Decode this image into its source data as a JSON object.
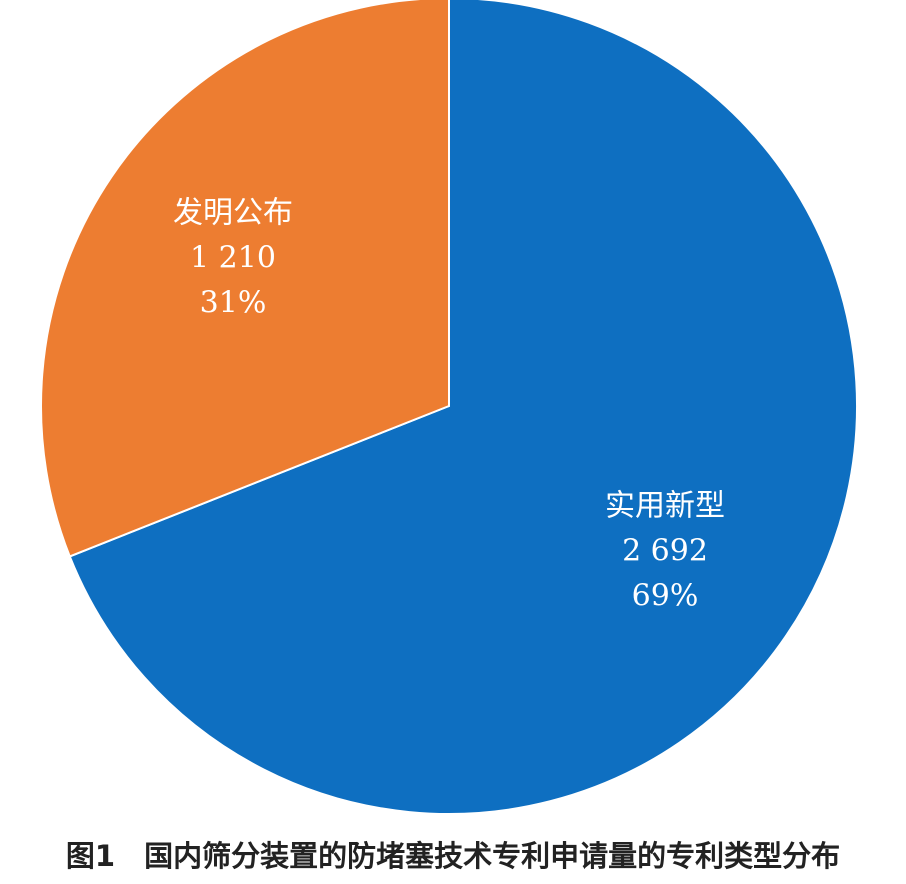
{
  "chart_data": {
    "type": "pie",
    "title": "图1　国内筛分装置的防堵塞技术专利申请量的专利类型分布",
    "categories": [
      "实用新型",
      "发明公布"
    ],
    "values": [
      2692,
      1210
    ],
    "value_labels": [
      "2 692",
      "1 210"
    ],
    "shares": [
      69,
      31
    ],
    "share_labels": [
      "69%",
      "31%"
    ],
    "colors": [
      "#0e6fc1",
      "#ed7d31"
    ]
  }
}
